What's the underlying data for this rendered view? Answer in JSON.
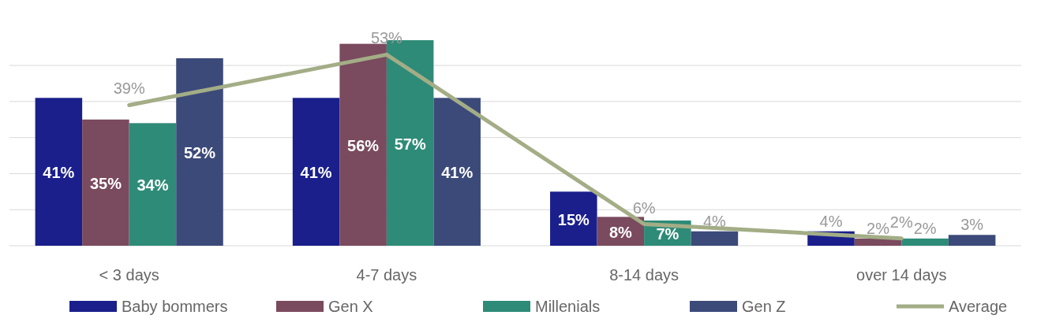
{
  "chart_data": {
    "type": "bar",
    "categories": [
      "< 3 days",
      "4-7 days",
      "8-14 days",
      "over 14 days"
    ],
    "series": [
      {
        "name": "Baby bommers",
        "color": "#1a1f8c",
        "values": [
          41,
          41,
          15,
          4
        ],
        "value_labels": [
          "41%",
          "41%",
          "15%",
          "4%"
        ]
      },
      {
        "name": "Gen X",
        "color": "#7a4a5e",
        "values": [
          35,
          56,
          8,
          2
        ],
        "value_labels": [
          "35%",
          "56%",
          "8%",
          "2%"
        ]
      },
      {
        "name": "Millenials",
        "color": "#2e8b77",
        "values": [
          34,
          57,
          7,
          2
        ],
        "value_labels": [
          "34%",
          "57%",
          "7%",
          "2%"
        ]
      },
      {
        "name": "Gen Z",
        "color": "#3c4a7a",
        "values": [
          52,
          41,
          4,
          3
        ],
        "value_labels": [
          "52%",
          "41%",
          "4%",
          "3%"
        ]
      },
      {
        "name": "Average",
        "type": "line",
        "color": "#a3ad86",
        "values": [
          39,
          53,
          6,
          2
        ],
        "value_labels": [
          "39%",
          "53%",
          "6%",
          "2%"
        ]
      }
    ],
    "grid": "y",
    "tick_labels": "x",
    "legend": "bottom"
  }
}
